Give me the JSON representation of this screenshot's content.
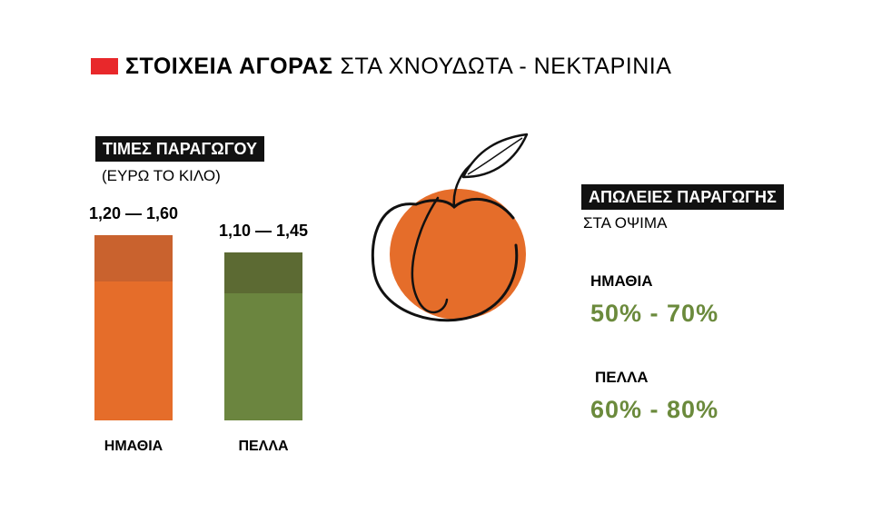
{
  "header": {
    "title_bold": "ΣΤΟΙΧΕΙΑ ΑΓΟΡΑΣ",
    "title_light": "ΣΤΑ ΧΝΟΥΔΩΤΑ - ΝΕΚΤΑΡΙΝΙΑ",
    "marker_color": "#e8282b"
  },
  "prices": {
    "heading": "ΤΙΜΕΣ ΠΑΡΑΓΩΓΟΥ",
    "unit": "(ΕΥΡΩ ΤΟ ΚΙΛΟ)"
  },
  "losses": {
    "heading": "ΑΠΩΛΕΙΕΣ ΠΑΡΑΓΩΓΗΣ",
    "subheading": "ΣΤΑ ΟΨΙΜΑ",
    "items": [
      {
        "region": "ΗΜΑΘΙΑ",
        "value": "50% - 70%"
      },
      {
        "region": "ΠΕΛΛΑ",
        "value": "60% - 80%"
      }
    ],
    "value_color": "#6b8a3c"
  },
  "chart_data": {
    "type": "bar",
    "title": "ΤΙΜΕΣ ΠΑΡΑΓΩΓΟΥ",
    "ylabel": "(ΕΥΡΩ ΤΟ ΚΙΛΟ)",
    "categories": [
      "ΗΜΑΘΙΑ",
      "ΠΕΛΛΑ"
    ],
    "ranges": [
      {
        "low": 1.2,
        "high": 1.6,
        "label": "1,20 — 1,60",
        "color_low": "#e56d2a",
        "color_high": "#c9622e"
      },
      {
        "low": 1.1,
        "high": 1.45,
        "label": "1,10 — 1,45",
        "color_low": "#6b853f",
        "color_high": "#5c6a33"
      }
    ],
    "ylim": [
      0,
      1.6
    ],
    "grid": false
  },
  "icons": {
    "fruit": "peach-icon"
  }
}
